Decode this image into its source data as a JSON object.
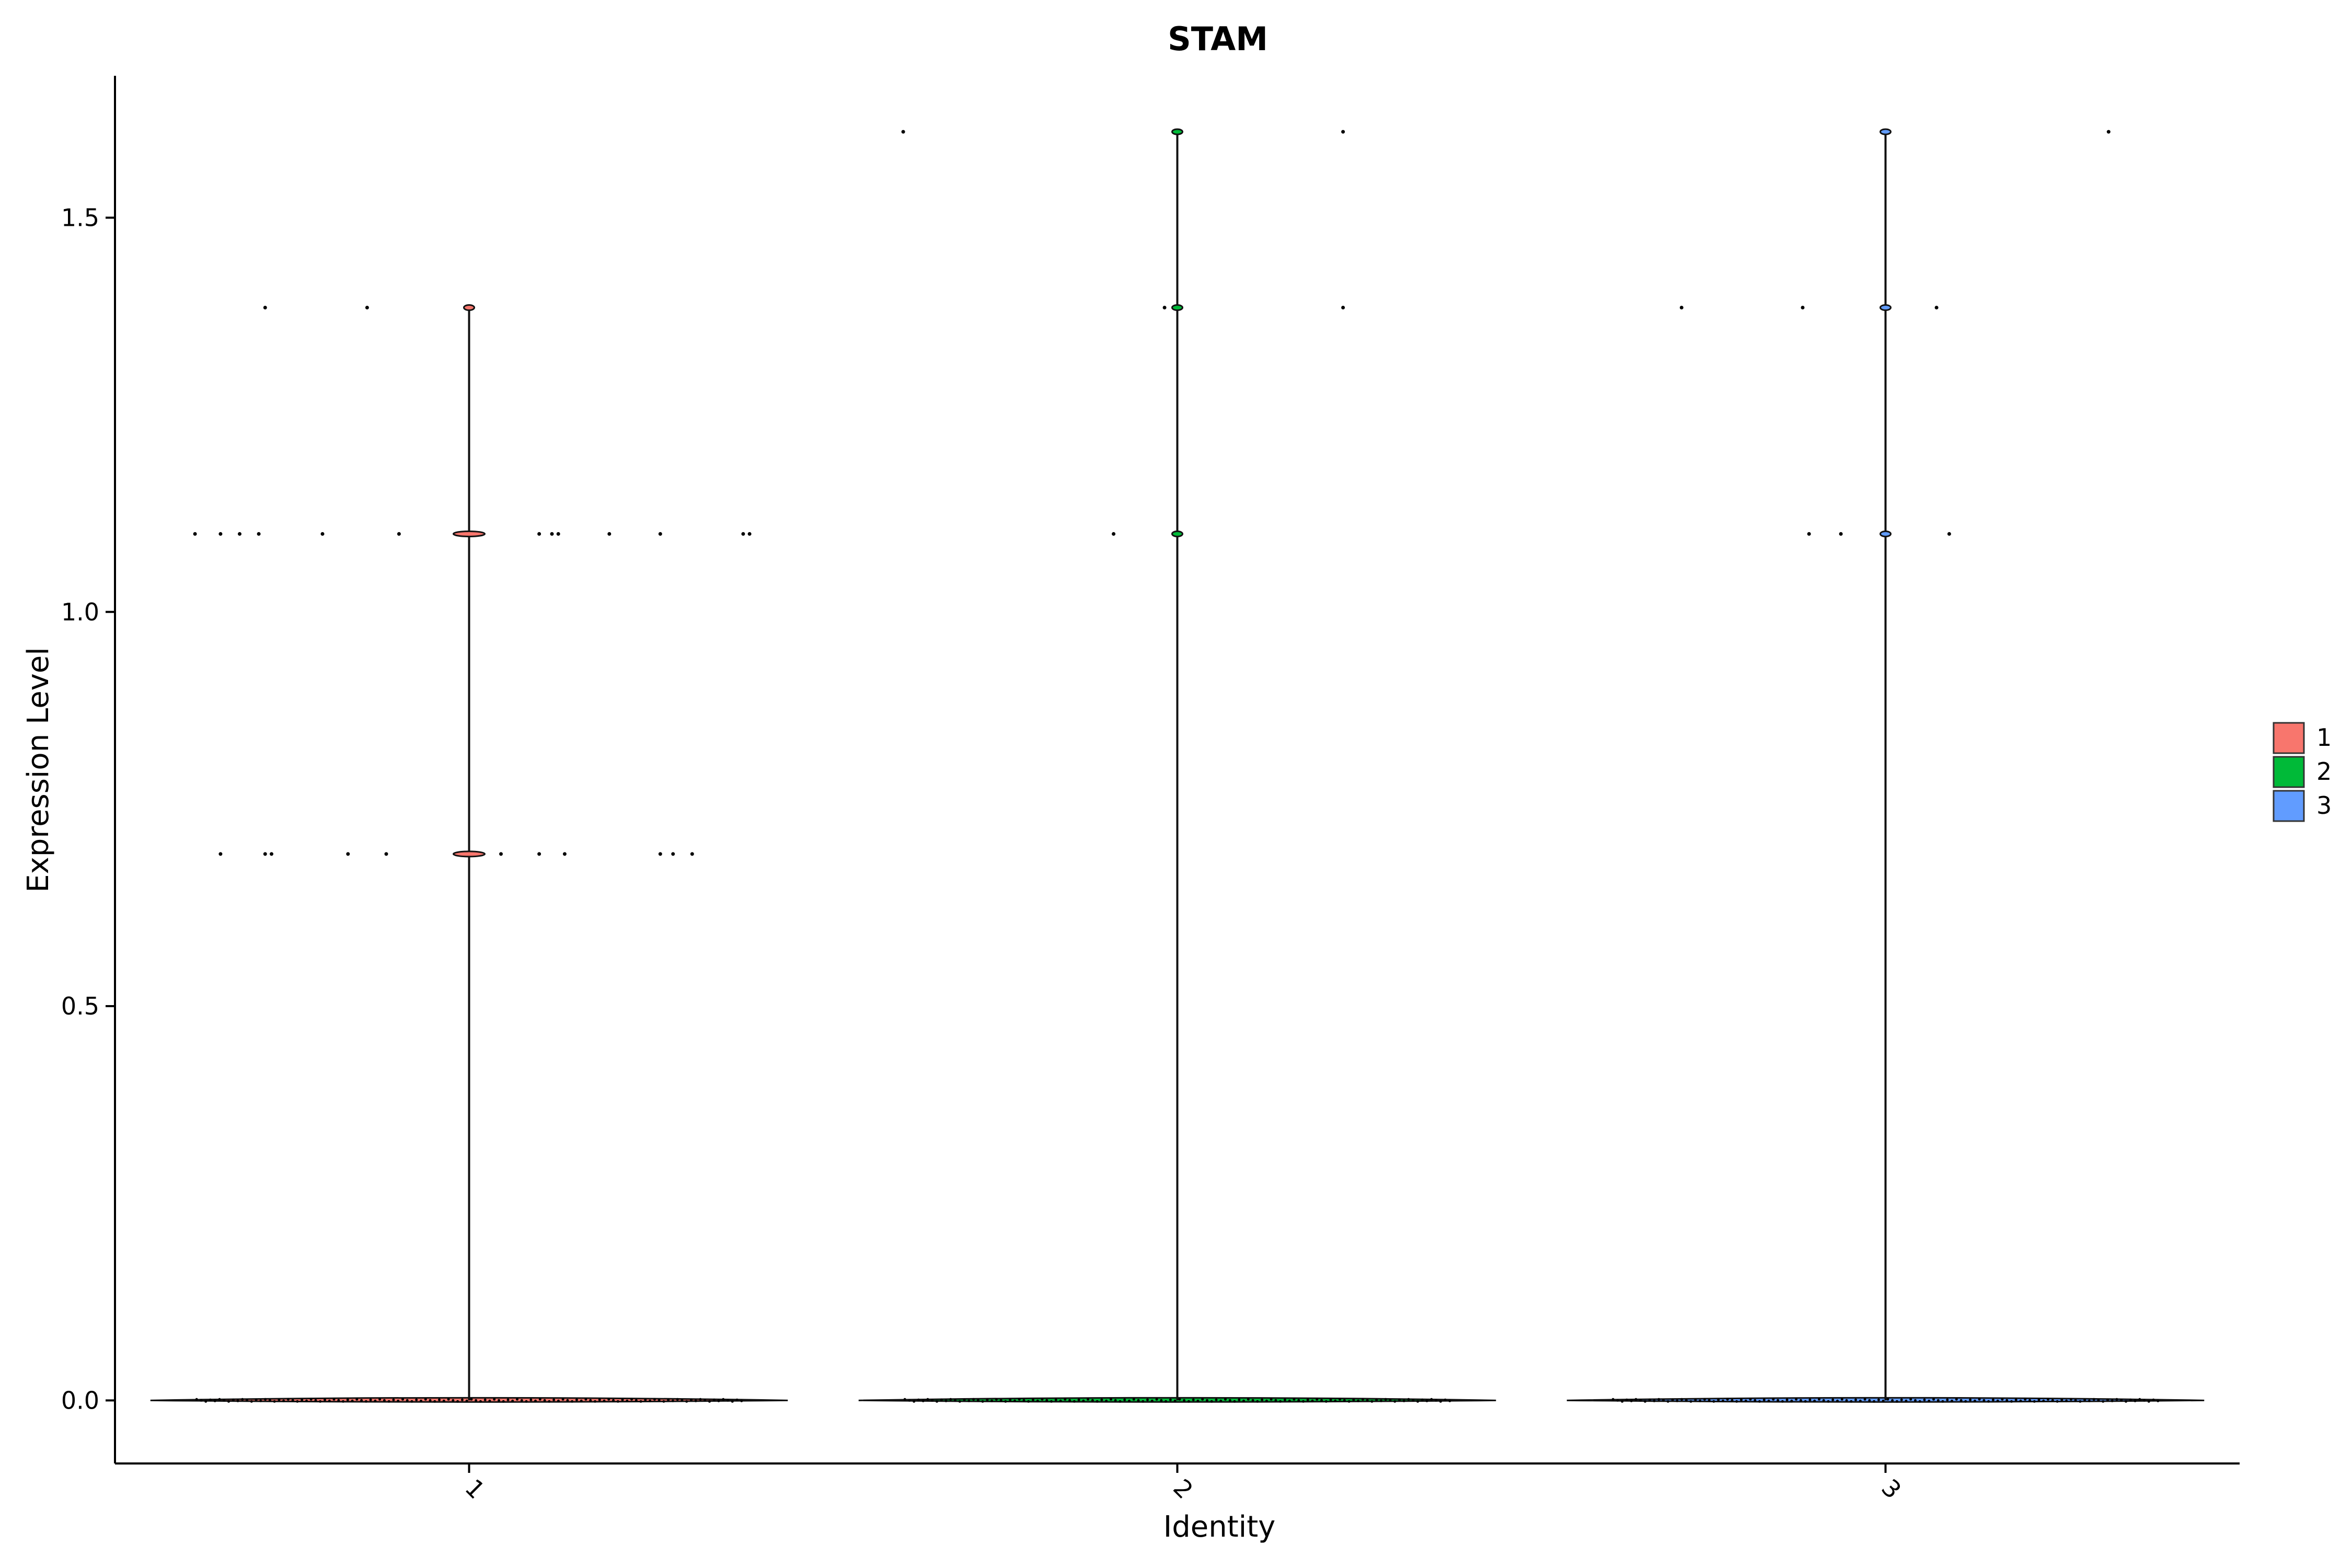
{
  "chart_data": {
    "type": "violin",
    "title": "STAM",
    "xlabel": "Identity",
    "ylabel": "Expression Level",
    "categories": [
      "1",
      "2",
      "3"
    ],
    "ylim": [
      -0.08,
      1.68
    ],
    "yticks": [
      0.0,
      0.5,
      1.0,
      1.5
    ],
    "ytick_labels": [
      "0.0",
      "0.5",
      "1.0",
      "1.5"
    ],
    "grid": false,
    "legend": {
      "placement": "right",
      "entries": [
        {
          "label": "1",
          "color": "#F8766D"
        },
        {
          "label": "2",
          "color": "#00BA38"
        },
        {
          "label": "3",
          "color": "#619CFF"
        }
      ]
    },
    "series": [
      {
        "name": "1",
        "color": "#F8766D",
        "max": 1.386,
        "points": [
          {
            "y": 1.386,
            "x": [
              -0.32,
              -0.16
            ]
          },
          {
            "y": 1.099,
            "x": [
              -0.43,
              -0.39,
              -0.36,
              -0.33,
              -0.23,
              -0.11,
              0.11,
              0.13,
              0.14,
              0.22,
              0.3,
              0.43,
              0.44
            ]
          },
          {
            "y": 0.693,
            "x": [
              -0.39,
              -0.32,
              -0.31,
              -0.19,
              -0.13,
              0.05,
              0.11,
              0.15,
              0.3,
              0.32,
              0.35
            ]
          }
        ]
      },
      {
        "name": "2",
        "color": "#00BA38",
        "max": 1.609,
        "points": [
          {
            "y": 1.609,
            "x": [
              -0.43,
              0.26
            ]
          },
          {
            "y": 1.386,
            "x": [
              -0.02,
              0.26
            ]
          },
          {
            "y": 1.099,
            "x": [
              -0.1
            ]
          }
        ]
      },
      {
        "name": "3",
        "color": "#619CFF",
        "max": 1.609,
        "points": [
          {
            "y": 1.609,
            "x": [
              0.35
            ]
          },
          {
            "y": 1.386,
            "x": [
              -0.32,
              -0.13,
              0.08
            ]
          },
          {
            "y": 1.099,
            "x": [
              -0.12,
              -0.07,
              0.1
            ]
          }
        ]
      }
    ]
  }
}
